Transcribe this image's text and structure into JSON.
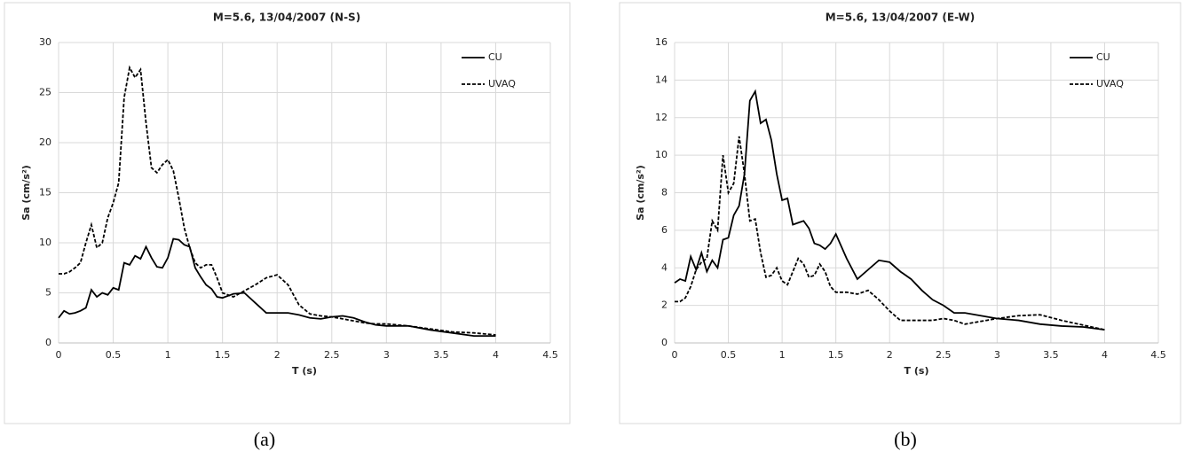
{
  "chart_data": [
    {
      "type": "line",
      "title": "M=5.6, 13/04/2007 (N-S)",
      "x_label": "T (s)",
      "y_label": "Sa (cm/s²)",
      "caption": "(a)",
      "x": [
        0,
        0.05,
        0.1,
        0.15,
        0.2,
        0.25,
        0.3,
        0.35,
        0.4,
        0.45,
        0.5,
        0.55,
        0.6,
        0.65,
        0.7,
        0.75,
        0.8,
        0.85,
        0.9,
        0.95,
        1.0,
        1.05,
        1.1,
        1.15,
        1.2,
        1.25,
        1.3,
        1.35,
        1.4,
        1.45,
        1.5,
        1.6,
        1.7,
        1.8,
        1.9,
        2.0,
        2.1,
        2.2,
        2.3,
        2.4,
        2.5,
        2.6,
        2.7,
        2.8,
        2.9,
        3.0,
        3.2,
        3.4,
        3.6,
        3.8,
        4.0
      ],
      "series": [
        {
          "name": "CU",
          "color": "#000000",
          "line_style": "solid",
          "values": [
            2.5,
            3.2,
            2.9,
            3.0,
            3.2,
            3.5,
            5.3,
            4.6,
            5.0,
            4.8,
            5.5,
            5.3,
            8.0,
            7.8,
            8.7,
            8.4,
            9.6,
            8.5,
            7.6,
            7.5,
            8.5,
            10.4,
            10.3,
            9.8,
            9.6,
            7.5,
            6.6,
            5.8,
            5.4,
            4.6,
            4.5,
            4.9,
            5.0,
            4.0,
            3.0,
            3.0,
            3.0,
            2.8,
            2.5,
            2.4,
            2.6,
            2.7,
            2.5,
            2.1,
            1.8,
            1.7,
            1.7,
            1.3,
            1.0,
            0.7,
            0.7
          ]
        },
        {
          "name": "UVAQ",
          "color": "#000000",
          "line_style": "dashed",
          "values": [
            6.9,
            6.9,
            7.1,
            7.5,
            8.0,
            10.0,
            11.8,
            9.5,
            10.0,
            12.5,
            14.0,
            16.0,
            24.5,
            27.5,
            26.5,
            27.3,
            22.0,
            17.5,
            17.0,
            17.8,
            18.3,
            17.2,
            14.5,
            11.5,
            9.5,
            8.0,
            7.5,
            7.8,
            7.8,
            6.5,
            5.0,
            4.6,
            5.2,
            5.8,
            6.5,
            6.8,
            5.8,
            3.8,
            2.9,
            2.7,
            2.6,
            2.4,
            2.2,
            2.0,
            1.9,
            1.9,
            1.7,
            1.4,
            1.1,
            1.0,
            0.8
          ]
        }
      ],
      "xlim": [
        0,
        4.5
      ],
      "xticks": [
        0,
        0.5,
        1,
        1.5,
        2,
        2.5,
        3,
        3.5,
        4,
        4.5
      ],
      "ylim": [
        0,
        30
      ],
      "yticks": [
        0,
        5,
        10,
        15,
        20,
        25,
        30
      ],
      "grid": true,
      "legend": "top-right"
    },
    {
      "type": "line",
      "title": "M=5.6, 13/04/2007 (E-W)",
      "x_label": "T (s)",
      "y_label": "Sa (cm/s²)",
      "caption": "(b)",
      "x": [
        0,
        0.05,
        0.1,
        0.15,
        0.2,
        0.25,
        0.3,
        0.35,
        0.4,
        0.45,
        0.5,
        0.55,
        0.6,
        0.65,
        0.7,
        0.75,
        0.8,
        0.85,
        0.9,
        0.95,
        1.0,
        1.05,
        1.1,
        1.15,
        1.2,
        1.25,
        1.3,
        1.35,
        1.4,
        1.45,
        1.5,
        1.6,
        1.7,
        1.8,
        1.9,
        2.0,
        2.1,
        2.2,
        2.3,
        2.4,
        2.5,
        2.6,
        2.7,
        2.8,
        2.9,
        3.0,
        3.2,
        3.4,
        3.6,
        3.8,
        4.0
      ],
      "series": [
        {
          "name": "CU",
          "color": "#000000",
          "line_style": "solid",
          "values": [
            3.2,
            3.4,
            3.3,
            4.6,
            3.9,
            4.8,
            3.8,
            4.4,
            4.0,
            5.5,
            5.6,
            6.8,
            7.3,
            9.0,
            12.9,
            13.4,
            11.7,
            11.9,
            10.8,
            9.0,
            7.6,
            7.7,
            6.3,
            6.4,
            6.5,
            6.1,
            5.3,
            5.2,
            5.0,
            5.3,
            5.8,
            4.5,
            3.4,
            3.9,
            4.4,
            4.3,
            3.8,
            3.4,
            2.8,
            2.3,
            2.0,
            1.6,
            1.6,
            1.5,
            1.4,
            1.3,
            1.2,
            1.0,
            0.9,
            0.85,
            0.7
          ]
        },
        {
          "name": "UVAQ",
          "color": "#000000",
          "line_style": "dashed",
          "values": [
            2.2,
            2.2,
            2.4,
            3.0,
            3.9,
            4.3,
            4.5,
            6.5,
            6.0,
            10.0,
            8.0,
            8.5,
            11.0,
            9.0,
            6.5,
            6.6,
            4.8,
            3.5,
            3.6,
            4.0,
            3.3,
            3.1,
            3.8,
            4.5,
            4.2,
            3.5,
            3.6,
            4.2,
            3.8,
            3.0,
            2.7,
            2.7,
            2.6,
            2.8,
            2.3,
            1.7,
            1.2,
            1.2,
            1.2,
            1.2,
            1.3,
            1.2,
            1.0,
            1.1,
            1.2,
            1.3,
            1.45,
            1.5,
            1.2,
            0.95,
            0.7
          ]
        }
      ],
      "xlim": [
        0,
        4.5
      ],
      "xticks": [
        0,
        0.5,
        1,
        1.5,
        2,
        2.5,
        3,
        3.5,
        4,
        4.5
      ],
      "ylim": [
        0,
        16
      ],
      "yticks": [
        0,
        2,
        4,
        6,
        8,
        10,
        12,
        14,
        16
      ],
      "grid": true,
      "legend": "top-right"
    }
  ]
}
